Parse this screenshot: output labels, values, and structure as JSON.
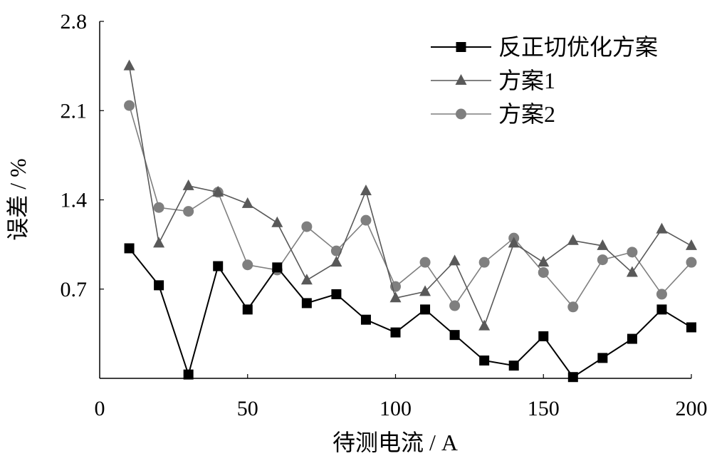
{
  "chart_data": {
    "type": "line",
    "xlabel": "待测电流 / A",
    "ylabel": "误差 / %",
    "xlim": [
      0,
      200
    ],
    "ylim": [
      0,
      2.8
    ],
    "x_ticks": [
      "0",
      "50",
      "100",
      "150",
      "200"
    ],
    "y_ticks": [
      "0.7",
      "1.4",
      "2.1",
      "2.8"
    ],
    "x": [
      10,
      20,
      30,
      40,
      50,
      60,
      70,
      80,
      90,
      100,
      110,
      120,
      130,
      140,
      150,
      160,
      170,
      180,
      190,
      200
    ],
    "legend_position": "top-right",
    "series": [
      {
        "name": "反正切优化方案",
        "marker": "square",
        "color": "#000000",
        "values": [
          1.02,
          0.73,
          0.03,
          0.88,
          0.54,
          0.87,
          0.59,
          0.66,
          0.46,
          0.36,
          0.54,
          0.34,
          0.14,
          0.1,
          0.33,
          0.01,
          0.16,
          0.31,
          0.54,
          0.4
        ]
      },
      {
        "name": "方案1",
        "marker": "triangle",
        "color": "#595959",
        "values": [
          2.45,
          1.06,
          1.51,
          1.46,
          1.37,
          1.22,
          0.77,
          0.91,
          1.47,
          0.63,
          0.68,
          0.92,
          0.41,
          1.06,
          0.91,
          1.08,
          1.04,
          0.83,
          1.17,
          1.04
        ]
      },
      {
        "name": "方案2",
        "marker": "circle",
        "color": "#7f7f7f",
        "values": [
          2.14,
          1.34,
          1.31,
          1.46,
          0.89,
          0.85,
          1.19,
          1.0,
          1.24,
          0.72,
          0.91,
          0.57,
          0.91,
          1.1,
          0.83,
          0.56,
          0.93,
          0.99,
          0.66,
          0.91
        ]
      }
    ]
  }
}
